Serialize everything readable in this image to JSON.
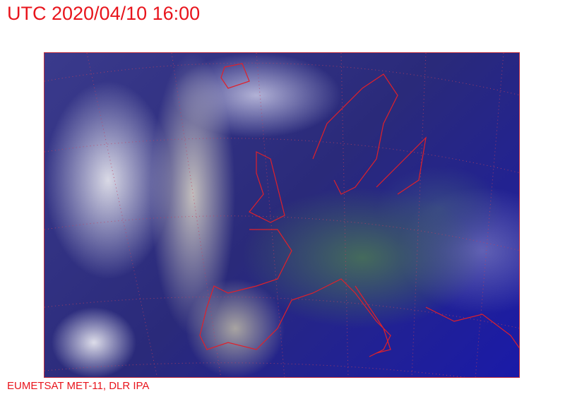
{
  "header": {
    "title": "UTC 2020/04/10 16:00"
  },
  "footer": {
    "credit": "EUMETSAT MET-11, DLR IPA"
  },
  "map": {
    "type": "satellite image (RGB composite)",
    "region": "Europe and North Atlantic",
    "overlays": [
      "coastlines",
      "country borders",
      "lat-lon grid (dotted)"
    ],
    "colors": {
      "text": "#e8141c",
      "coastline": "#e0202a",
      "ocean": "#2a2a7a",
      "land": "#46705a",
      "cloud": "#e6e6ee"
    }
  }
}
